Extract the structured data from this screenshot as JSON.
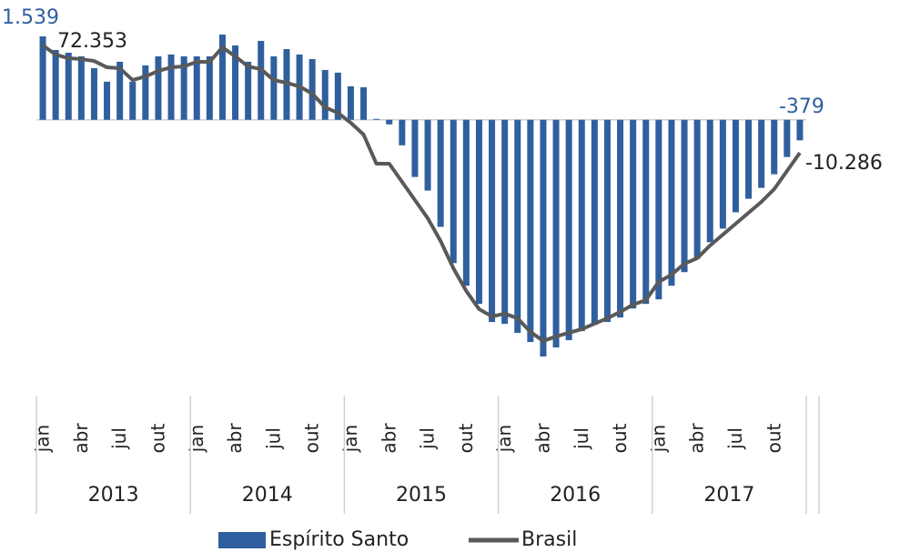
{
  "chart_data": {
    "type": "bar-line",
    "categories": [
      "jan",
      null,
      null,
      "abr",
      null,
      null,
      "jul",
      null,
      null,
      "out",
      null,
      null,
      "jan",
      null,
      null,
      "abr",
      null,
      null,
      "jul",
      null,
      null,
      "out",
      null,
      null,
      "jan",
      null,
      null,
      "abr",
      null,
      null,
      "jul",
      null,
      null,
      "out",
      null,
      null,
      "jan",
      null,
      null,
      "abr",
      null,
      null,
      "jul",
      null,
      null,
      "out",
      null,
      null,
      "jan",
      null,
      null,
      "abr",
      null,
      null,
      "jul",
      null,
      null,
      "out",
      null,
      null
    ],
    "category_groups": [
      "2013",
      "2014",
      "2015",
      "2016",
      "2017"
    ],
    "ylim": [
      -4500,
      1875
    ],
    "y2lim": [
      -172700,
      93400
    ],
    "legend": "bottom",
    "series": [
      {
        "name": "Espírito Santo",
        "type": "bar",
        "color": "#2f5f9e",
        "values": [
          1539,
          1288,
          1238,
          1171,
          954,
          703,
          1071,
          703,
          1004,
          1171,
          1205,
          1171,
          1171,
          1171,
          1573,
          1372,
          1071,
          1456,
          1171,
          1305,
          1205,
          1121,
          920,
          870,
          619,
          602,
          17,
          -84,
          -470,
          -1054,
          -1305,
          -1974,
          -2643,
          -3061,
          -3396,
          -3730,
          -3764,
          -3931,
          -4099,
          -4366,
          -4199,
          -4065,
          -3898,
          -3781,
          -3730,
          -3647,
          -3480,
          -3396,
          -3312,
          -3061,
          -2810,
          -2559,
          -2258,
          -2007,
          -1706,
          -1456,
          -1255,
          -1004,
          -686,
          -379
        ],
        "value_labels": [
          "1.539",
          null,
          null,
          null,
          null,
          null,
          null,
          null,
          null,
          null,
          null,
          null,
          null,
          null,
          null,
          null,
          null,
          null,
          null,
          null,
          null,
          null,
          null,
          null,
          null,
          null,
          null,
          null,
          null,
          null,
          null,
          null,
          null,
          null,
          null,
          null,
          null,
          null,
          null,
          null,
          null,
          null,
          null,
          null,
          null,
          null,
          null,
          null,
          null,
          null,
          null,
          null,
          null,
          null,
          null,
          null,
          null,
          null,
          null,
          "-379"
        ]
      },
      {
        "name": "Brasil",
        "type": "line",
        "axis": "y2",
        "color": "#595959",
        "values": [
          72353,
          65353,
          62553,
          61853,
          60453,
          55553,
          54853,
          45753,
          48553,
          52753,
          55553,
          56253,
          59753,
          59753,
          70953,
          63953,
          56253,
          54153,
          45753,
          43653,
          40853,
          35253,
          24753,
          20553,
          12853,
          3753,
          -18647,
          -18647,
          -32647,
          -46647,
          -60647,
          -78147,
          -99147,
          -116647,
          -130647,
          -136247,
          -134147,
          -137647,
          -148147,
          -155147,
          -151647,
          -148847,
          -146047,
          -141847,
          -137647,
          -132747,
          -127147,
          -123647,
          -109647,
          -104047,
          -95647,
          -91447,
          -81647,
          -73247,
          -64847,
          -56447,
          -48047,
          -38247,
          -24247,
          -10286
        ],
        "value_labels": [
          "72.353",
          null,
          null,
          null,
          null,
          null,
          null,
          null,
          null,
          null,
          null,
          null,
          null,
          null,
          null,
          null,
          null,
          null,
          null,
          null,
          null,
          null,
          null,
          null,
          null,
          null,
          null,
          null,
          null,
          null,
          null,
          null,
          null,
          null,
          null,
          null,
          null,
          null,
          null,
          null,
          null,
          null,
          null,
          null,
          null,
          null,
          null,
          null,
          null,
          null,
          null,
          null,
          null,
          null,
          null,
          null,
          null,
          null,
          null,
          "-10.286"
        ]
      }
    ]
  }
}
